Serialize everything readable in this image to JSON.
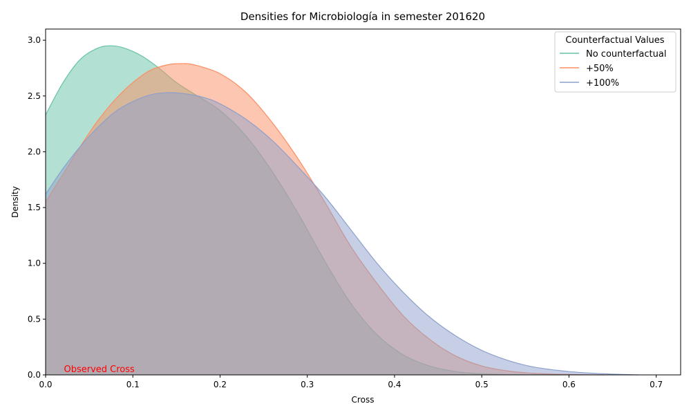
{
  "chart_data": {
    "type": "area",
    "title": "Densities for Microbiología in semester 201620",
    "xlabel": "Cross",
    "ylabel": "Density",
    "xlim": [
      0,
      0.728
    ],
    "ylim": [
      0,
      3.1
    ],
    "xticks": [
      0.0,
      0.1,
      0.2,
      0.3,
      0.4,
      0.5,
      0.6,
      0.7
    ],
    "xtick_labels": [
      "0.0",
      "0.1",
      "0.2",
      "0.3",
      "0.4",
      "0.5",
      "0.6",
      "0.7"
    ],
    "yticks": [
      0.0,
      0.5,
      1.0,
      1.5,
      2.0,
      2.5,
      3.0
    ],
    "ytick_labels": [
      "0.0",
      "0.5",
      "1.0",
      "1.5",
      "2.0",
      "2.5",
      "3.0"
    ],
    "grid": false,
    "legend": {
      "title": "Counterfactual Values",
      "placement": "top-right"
    },
    "annotation": {
      "text": "Observed Cross",
      "x": 0.021,
      "y": 0.0,
      "color": "#ff0000"
    },
    "series": [
      {
        "name": "No counterfactual",
        "color": "#66c2a5",
        "fill_opacity": 0.5,
        "x": [
          0.0,
          0.02,
          0.04,
          0.06,
          0.075,
          0.09,
          0.11,
          0.13,
          0.15,
          0.17,
          0.2,
          0.23,
          0.26,
          0.29,
          0.32,
          0.35,
          0.38,
          0.41,
          0.44,
          0.47,
          0.5,
          0.53,
          0.56,
          0.59
        ],
        "y": [
          2.33,
          2.62,
          2.83,
          2.93,
          2.95,
          2.93,
          2.86,
          2.75,
          2.62,
          2.52,
          2.37,
          2.14,
          1.82,
          1.44,
          1.02,
          0.64,
          0.36,
          0.18,
          0.08,
          0.03,
          0.01,
          0.003,
          0.001,
          0.0
        ]
      },
      {
        "name": "+50%",
        "color": "#fc8d62",
        "fill_opacity": 0.5,
        "x": [
          0.0,
          0.02,
          0.04,
          0.06,
          0.08,
          0.1,
          0.12,
          0.14,
          0.155,
          0.17,
          0.2,
          0.23,
          0.26,
          0.29,
          0.32,
          0.35,
          0.38,
          0.41,
          0.44,
          0.47,
          0.5,
          0.53,
          0.56,
          0.6,
          0.64
        ],
        "y": [
          1.55,
          1.8,
          2.05,
          2.28,
          2.47,
          2.62,
          2.73,
          2.78,
          2.79,
          2.78,
          2.7,
          2.53,
          2.26,
          1.93,
          1.55,
          1.15,
          0.82,
          0.53,
          0.32,
          0.17,
          0.08,
          0.035,
          0.014,
          0.004,
          0.0
        ]
      },
      {
        "name": "+100%",
        "color": "#8da0cb",
        "fill_opacity": 0.5,
        "x": [
          0.0,
          0.02,
          0.04,
          0.06,
          0.08,
          0.1,
          0.12,
          0.14,
          0.16,
          0.18,
          0.2,
          0.23,
          0.26,
          0.29,
          0.32,
          0.35,
          0.38,
          0.41,
          0.44,
          0.47,
          0.5,
          0.53,
          0.56,
          0.6,
          0.64,
          0.68
        ],
        "y": [
          1.62,
          1.85,
          2.05,
          2.22,
          2.36,
          2.45,
          2.51,
          2.53,
          2.52,
          2.49,
          2.43,
          2.29,
          2.1,
          1.86,
          1.6,
          1.3,
          1.0,
          0.74,
          0.52,
          0.35,
          0.22,
          0.13,
          0.07,
          0.03,
          0.01,
          0.0
        ]
      }
    ]
  }
}
